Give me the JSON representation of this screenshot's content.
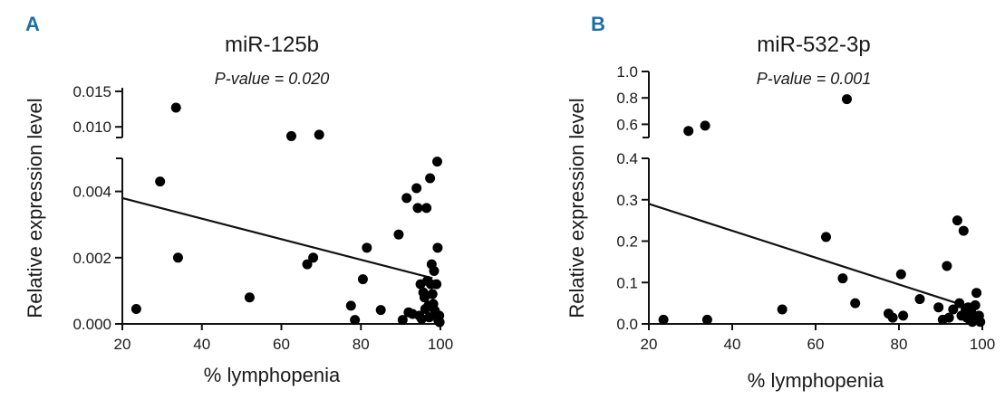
{
  "chart_data": [
    {
      "type": "scatter",
      "panel": "A",
      "title": "miR-125b",
      "annotation": "P-value = 0.020",
      "xlabel": "% lymphopenia",
      "ylabel": "Relative expression level",
      "xlim": [
        20,
        100
      ],
      "x_ticks": [
        {
          "v": 20,
          "label": "20"
        },
        {
          "v": 40,
          "label": "40"
        },
        {
          "v": 60,
          "label": "60"
        },
        {
          "v": 80,
          "label": "80"
        },
        {
          "v": 100,
          "label": "100"
        }
      ],
      "y_broken": true,
      "y_lower_range": [
        0,
        0.005
      ],
      "y_upper_range": [
        0.0085,
        0.0155
      ],
      "y_lower_ticks": [
        {
          "v": 0,
          "label": "0.000"
        },
        {
          "v": 0.002,
          "label": "0.002"
        },
        {
          "v": 0.004,
          "label": "0.004"
        }
      ],
      "y_upper_ticks": [
        {
          "v": 0.01,
          "label": "0.010"
        },
        {
          "v": 0.015,
          "label": "0.015"
        }
      ],
      "trend_line": {
        "x": [
          20,
          98
        ],
        "y": [
          0.0038,
          0.00138
        ]
      },
      "points": [
        [
          23.5,
          0.00045
        ],
        [
          29.5,
          0.0043
        ],
        [
          33.5,
          0.0127
        ],
        [
          34,
          0.002
        ],
        [
          52,
          0.0008
        ],
        [
          62.5,
          0.0087
        ],
        [
          66.5,
          0.0018
        ],
        [
          68,
          0.002
        ],
        [
          69.5,
          0.0089
        ],
        [
          77.5,
          0.00055
        ],
        [
          78.5,
          0.00012
        ],
        [
          80.5,
          0.00135
        ],
        [
          81.5,
          0.0023
        ],
        [
          85,
          0.00042
        ],
        [
          89.5,
          0.0027
        ],
        [
          90.5,
          0.00012
        ],
        [
          91.5,
          0.0038
        ],
        [
          92,
          0.00035
        ],
        [
          93,
          0.0003
        ],
        [
          94,
          0.0041
        ],
        [
          94.3,
          0.0035
        ],
        [
          94.7,
          0.00025
        ],
        [
          95,
          0.0012
        ],
        [
          95.3,
          0.00015
        ],
        [
          95.7,
          0.00095
        ],
        [
          96,
          0.0008
        ],
        [
          96.2,
          0.00045
        ],
        [
          96.5,
          0.0035
        ],
        [
          96.7,
          0.0013
        ],
        [
          97,
          0.00055
        ],
        [
          97.2,
          0.0002
        ],
        [
          97.4,
          0.0044
        ],
        [
          97.6,
          0.0012
        ],
        [
          97.8,
          0.0018
        ],
        [
          98,
          0.0009
        ],
        [
          98.2,
          0.0006
        ],
        [
          98.4,
          0.0016
        ],
        [
          98.6,
          0.0004
        ],
        [
          98.8,
          0.0003
        ],
        [
          99,
          0.0012
        ],
        [
          99.2,
          0.0049
        ],
        [
          99.3,
          0.0023
        ],
        [
          99.5,
          0.0001
        ],
        [
          99.7,
          0.00025
        ],
        [
          99.8,
          5e-05
        ]
      ]
    },
    {
      "type": "scatter",
      "panel": "B",
      "title": "miR-532-3p",
      "annotation": "P-value = 0.001",
      "xlabel": "% lymphopenia",
      "ylabel": "Relative expression level",
      "xlim": [
        20,
        100
      ],
      "x_ticks": [
        {
          "v": 20,
          "label": "20"
        },
        {
          "v": 40,
          "label": "40"
        },
        {
          "v": 60,
          "label": "60"
        },
        {
          "v": 80,
          "label": "80"
        },
        {
          "v": 100,
          "label": "100"
        }
      ],
      "y_broken": true,
      "y_lower_range": [
        0,
        0.4
      ],
      "y_upper_range": [
        0.5,
        1.0
      ],
      "y_lower_ticks": [
        {
          "v": 0,
          "label": "0.0"
        },
        {
          "v": 0.1,
          "label": "0.1"
        },
        {
          "v": 0.2,
          "label": "0.2"
        },
        {
          "v": 0.3,
          "label": "0.3"
        },
        {
          "v": 0.4,
          "label": "0.4"
        }
      ],
      "y_upper_ticks": [
        {
          "v": 0.6,
          "label": "0.6"
        },
        {
          "v": 0.8,
          "label": "0.8"
        },
        {
          "v": 1.0,
          "label": "1.0"
        }
      ],
      "trend_line": {
        "x": [
          20,
          97
        ],
        "y": [
          0.29,
          0.04
        ]
      },
      "points": [
        [
          23.5,
          0.01
        ],
        [
          29.5,
          0.55
        ],
        [
          33.5,
          0.59
        ],
        [
          34,
          0.01
        ],
        [
          52,
          0.035
        ],
        [
          62.5,
          0.21
        ],
        [
          66.5,
          0.11
        ],
        [
          67.5,
          0.79
        ],
        [
          69.5,
          0.05
        ],
        [
          77.5,
          0.025
        ],
        [
          78.5,
          0.015
        ],
        [
          80.5,
          0.12
        ],
        [
          81,
          0.02
        ],
        [
          85,
          0.06
        ],
        [
          89.5,
          0.04
        ],
        [
          90.5,
          0.01
        ],
        [
          91.5,
          0.14
        ],
        [
          92,
          0.015
        ],
        [
          93,
          0.035
        ],
        [
          94,
          0.25
        ],
        [
          94.5,
          0.05
        ],
        [
          95,
          0.02
        ],
        [
          95.5,
          0.225
        ],
        [
          96,
          0.035
        ],
        [
          96.3,
          0.015
        ],
        [
          96.6,
          0.04
        ],
        [
          97,
          0.01
        ],
        [
          97.3,
          0.03
        ],
        [
          97.6,
          0.005
        ],
        [
          98,
          0.02
        ],
        [
          98.3,
          0.045
        ],
        [
          98.6,
          0.075
        ],
        [
          98.9,
          0.01
        ],
        [
          99.2,
          0.02
        ],
        [
          99.5,
          0.005
        ]
      ]
    }
  ]
}
